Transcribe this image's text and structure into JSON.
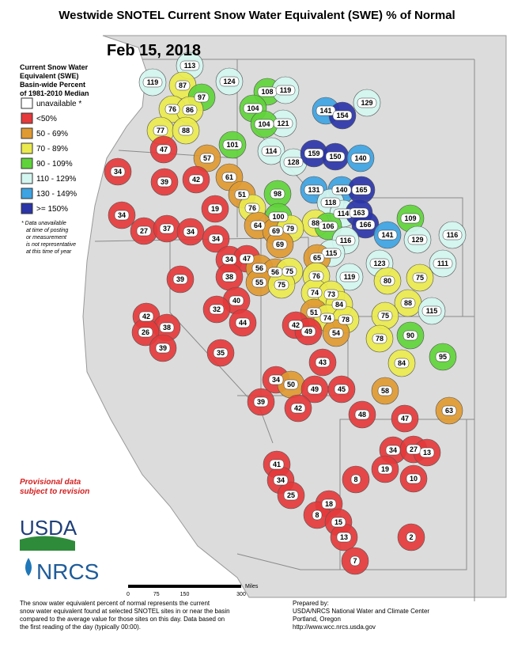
{
  "title": "Westwide SNOTEL Current Snow Water Equivalent (SWE) % of Normal",
  "date": "Feb 15, 2018",
  "legend": {
    "title": [
      "Current Snow Water",
      "Equivalent (SWE)",
      "Basin-wide Percent",
      "of 1981-2010 Median"
    ],
    "items": [
      {
        "label": "unavailable *",
        "color": "#ffffff"
      },
      {
        "label": "<50%",
        "color": "#e5393b"
      },
      {
        "label": "50 - 69%",
        "color": "#e09a32"
      },
      {
        "label": "70 - 89%",
        "color": "#eaea4e"
      },
      {
        "label": "90 - 109%",
        "color": "#5fd43a"
      },
      {
        "label": "110 - 129%",
        "color": "#d4f6f0"
      },
      {
        "label": "130 - 149%",
        "color": "#3da3e2"
      },
      {
        "label": ">= 150%",
        "color": "#2b35a8"
      }
    ]
  },
  "legend_note": [
    "*  Data unavailable",
    "at time of posting",
    "or measurement",
    "is not representative",
    "at this time of year"
  ],
  "provisional": [
    "Provisional data",
    "subject to revision"
  ],
  "logos": {
    "usda": "USDA",
    "nrcs": "NRCS"
  },
  "scale": {
    "ticks": [
      0,
      75,
      150,
      300
    ],
    "unit": "Miles"
  },
  "footnote": [
    "The snow water equivalent percent of normal represents the current",
    "snow water equivalent found at selected SNOTEL sites in or near the basin",
    "compared to the average value for those sites on this day. Data based on",
    "the first reading of the day (typically 00:00)."
  ],
  "credit": [
    "Prepared by:",
    "USDA/NRCS National Water and Climate Center",
    "Portland, Oregon",
    "http://www.wcc.nrcs.usda.gov"
  ],
  "basins": [
    113,
    119,
    87,
    124,
    97,
    108,
    119,
    76,
    86,
    104,
    141,
    154,
    129,
    121,
    104,
    77,
    88,
    101,
    114,
    128,
    159,
    150,
    140,
    47,
    57,
    34,
    39,
    42,
    61,
    98,
    131,
    140,
    165,
    51,
    118,
    76,
    19,
    34,
    100,
    114,
    163,
    109,
    64,
    88,
    106,
    166,
    27,
    37,
    34,
    69,
    79,
    141,
    129,
    116,
    34,
    116,
    69,
    115,
    34,
    47,
    65,
    123,
    111,
    56,
    56,
    75,
    76,
    119,
    80,
    75,
    39,
    38,
    55,
    75,
    74,
    73,
    40,
    84,
    88,
    32,
    75,
    115,
    51,
    74,
    78,
    44,
    42,
    38,
    26,
    42,
    49,
    54,
    78,
    90,
    39,
    95,
    35,
    43,
    84,
    34,
    50,
    49,
    45,
    58,
    39,
    42,
    48,
    47,
    63,
    34,
    27,
    13,
    19,
    10,
    41,
    34,
    8,
    25,
    18,
    8,
    15,
    13,
    2,
    7
  ]
}
